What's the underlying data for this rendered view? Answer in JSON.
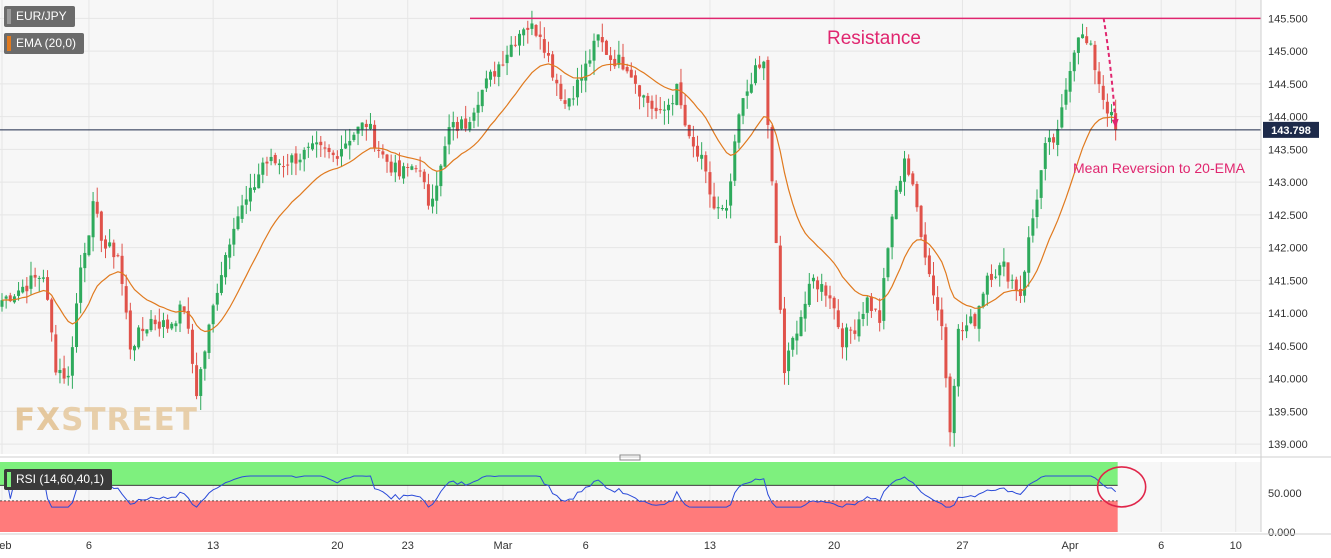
{
  "legend": {
    "symbol": "EUR/JPY",
    "ema_label": "EMA (20,0)",
    "ema_color": "#e07a1f",
    "rsi_label": "RSI (14,60,40,1)"
  },
  "watermark": "FXSTREET",
  "colors": {
    "up": "#2eaa5c",
    "down": "#e0524a",
    "resistance": "#e0266f",
    "rsi_line": "#2b4bd9",
    "rsi_top": "#7ef07e",
    "rsi_bottom": "#ff7b7b",
    "price_badge": "#1d2a4a"
  },
  "chart_data": [
    {
      "type": "candlestick",
      "title": "",
      "y_range": [
        138.85,
        145.75
      ],
      "y_ticks": [
        "145.500",
        "145.000",
        "144.500",
        "144.000",
        "143.500",
        "143.000",
        "142.500",
        "142.000",
        "141.500",
        "141.000",
        "140.500",
        "140.000",
        "139.500",
        "139.000"
      ],
      "x_labels": [
        {
          "label": "Feb",
          "bar": 0
        },
        {
          "label": "6",
          "bar": 21
        },
        {
          "label": "13",
          "bar": 51
        },
        {
          "label": "20",
          "bar": 81
        },
        {
          "label": "23",
          "bar": 98
        },
        {
          "label": "Mar",
          "bar": 121
        },
        {
          "label": "6",
          "bar": 141
        },
        {
          "label": "13",
          "bar": 171
        },
        {
          "label": "20",
          "bar": 201
        },
        {
          "label": "27",
          "bar": 232
        },
        {
          "label": "Apr",
          "bar": 258
        },
        {
          "label": "6",
          "bar": 280
        },
        {
          "label": "10",
          "bar": 298
        }
      ],
      "bars_total": 322,
      "last_price": 143.798,
      "path_points": [
        [
          0,
          141.2
        ],
        [
          5,
          141.4
        ],
        [
          10,
          141.6
        ],
        [
          13,
          140.2
        ],
        [
          16,
          140.0
        ],
        [
          19,
          141.7
        ],
        [
          22,
          142.6
        ],
        [
          25,
          142.0
        ],
        [
          28,
          141.9
        ],
        [
          31,
          140.5
        ],
        [
          36,
          140.9
        ],
        [
          40,
          140.8
        ],
        [
          44,
          141.1
        ],
        [
          47,
          139.8
        ],
        [
          52,
          141.4
        ],
        [
          56,
          142.4
        ],
        [
          60,
          142.8
        ],
        [
          63,
          143.3
        ],
        [
          68,
          143.3
        ],
        [
          72,
          143.4
        ],
        [
          76,
          143.5
        ],
        [
          80,
          143.4
        ],
        [
          84,
          143.7
        ],
        [
          88,
          143.9
        ],
        [
          92,
          143.4
        ],
        [
          96,
          143.1
        ],
        [
          100,
          143.3
        ],
        [
          103,
          142.7
        ],
        [
          106,
          143.2
        ],
        [
          108,
          143.8
        ],
        [
          112,
          143.9
        ],
        [
          115,
          144.3
        ],
        [
          118,
          144.6
        ],
        [
          122,
          145.0
        ],
        [
          126,
          145.4
        ],
        [
          130,
          145.3
        ],
        [
          133,
          144.7
        ],
        [
          136,
          144.2
        ],
        [
          140,
          144.6
        ],
        [
          144,
          145.2
        ],
        [
          147,
          144.9
        ],
        [
          151,
          144.8
        ],
        [
          155,
          144.3
        ],
        [
          159,
          144.0
        ],
        [
          163,
          144.4
        ],
        [
          166,
          143.6
        ],
        [
          169,
          143.3
        ],
        [
          172,
          142.6
        ],
        [
          175,
          142.5
        ],
        [
          178,
          144.0
        ],
        [
          181,
          144.6
        ],
        [
          184,
          144.8
        ],
        [
          185,
          143.9
        ],
        [
          187,
          142.0
        ],
        [
          189,
          140.1
        ],
        [
          192,
          140.8
        ],
        [
          196,
          141.5
        ],
        [
          200,
          141.3
        ],
        [
          203,
          140.6
        ],
        [
          206,
          140.8
        ],
        [
          209,
          141.2
        ],
        [
          212,
          140.9
        ],
        [
          215,
          142.5
        ],
        [
          218,
          143.4
        ],
        [
          221,
          142.6
        ],
        [
          224,
          141.6
        ],
        [
          227,
          140.8
        ],
        [
          229,
          139.3
        ],
        [
          231,
          140.7
        ],
        [
          235,
          140.9
        ],
        [
          238,
          141.6
        ],
        [
          242,
          141.7
        ],
        [
          246,
          141.3
        ],
        [
          248,
          142.1
        ],
        [
          252,
          143.5
        ],
        [
          255,
          143.7
        ],
        [
          258,
          144.8
        ],
        [
          260,
          145.3
        ],
        [
          263,
          145.0
        ],
        [
          266,
          144.3
        ],
        [
          269,
          143.8
        ]
      ],
      "ema_final": 143.8
    },
    {
      "type": "line",
      "title": "",
      "name": "RSI (14,60,40,1)",
      "y_range": [
        0,
        90
      ],
      "y_ticks": [
        "50.000",
        "0.000"
      ],
      "upper_level": 60,
      "lower_level": 40,
      "values_note_visible": false
    }
  ],
  "annotations": {
    "resistance_label": "Resistance",
    "resistance_level": 145.5,
    "mean_reversion_label": "Mean Reversion to 20-EMA"
  }
}
